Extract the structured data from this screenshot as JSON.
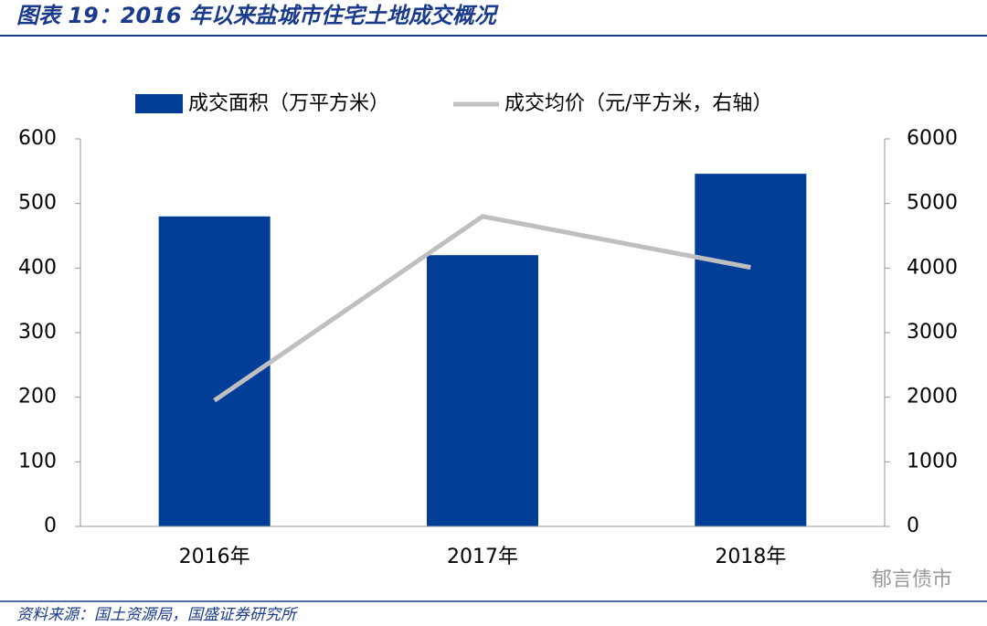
{
  "chart_data": {
    "type": "bar_line",
    "title": "图表 19：2016 年以来盐城市住宅土地成交概况",
    "source": "资料来源：国土资源局，国盛证券研究所",
    "watermark": "郁言债市",
    "categories": [
      "2016年",
      "2017年",
      "2018年"
    ],
    "series": [
      {
        "name": "成交面积（万平方米）",
        "color": "#023e98",
        "type": "bar",
        "values": [
          480,
          420,
          546
        ]
      },
      {
        "name": "成交均价（元/平方米，右轴）",
        "color": "#bfbfbf",
        "type": "line",
        "axis": "y2",
        "values": [
          1950,
          4800,
          4010
        ]
      }
    ],
    "ylim": [
      0,
      600
    ],
    "yticks": [
      0,
      100,
      200,
      300,
      400,
      500,
      600
    ],
    "y2lim": [
      0,
      6000
    ],
    "y2ticks": [
      0,
      1000,
      2000,
      3000,
      4000,
      5000,
      6000
    ],
    "grid": false,
    "legend": "top"
  }
}
